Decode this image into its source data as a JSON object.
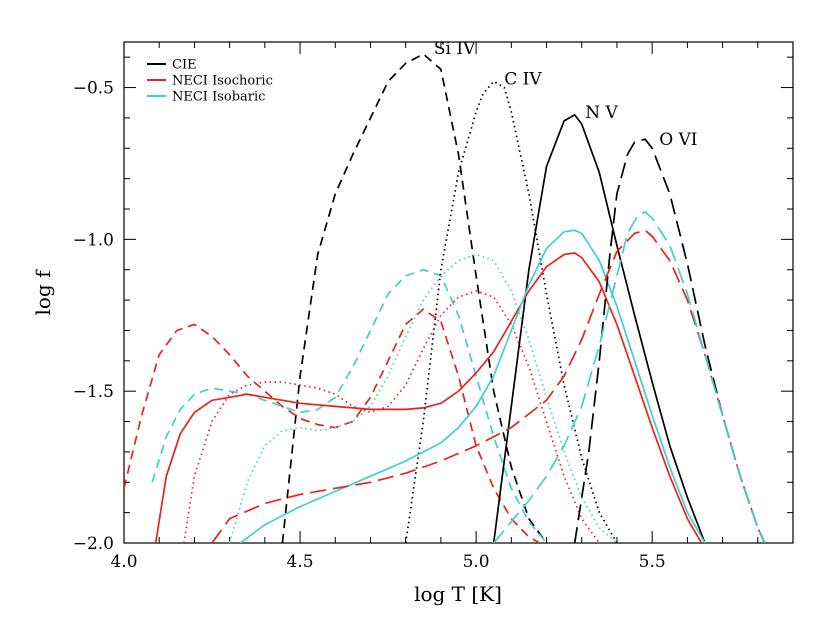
{
  "chart_data": {
    "type": "line",
    "xlabel": "log T [K]",
    "ylabel": "log f",
    "xlim": [
      4.0,
      5.9
    ],
    "ylim": [
      -2.0,
      -0.35
    ],
    "x_ticks": [
      4.0,
      4.5,
      5.0,
      5.5
    ],
    "x_tick_labels": [
      "4.0",
      "4.5",
      "5.0",
      "5.5"
    ],
    "y_ticks": [
      -2.0,
      -1.5,
      -1.0,
      -0.5
    ],
    "y_tick_labels": [
      "−2.0",
      "−1.5",
      "−1.0",
      "−0.5"
    ],
    "grid": false,
    "legend_position": "top-left",
    "legend": [
      {
        "label": "CIE",
        "color": "#000000"
      },
      {
        "label": "NECI Isochoric",
        "color": "#e8231f"
      },
      {
        "label": "NECI Isobaric",
        "color": "#3fd1c8"
      }
    ],
    "annotations": [
      {
        "text": "Si IV",
        "x": 4.88,
        "y": -0.37
      },
      {
        "text": "C IV",
        "x": 5.08,
        "y": -0.47
      },
      {
        "text": "N V",
        "x": 5.31,
        "y": -0.58
      },
      {
        "text": "O VI",
        "x": 5.52,
        "y": -0.67
      }
    ],
    "series": [
      {
        "ion": "Si IV",
        "model": "CIE",
        "color": "#000000",
        "dash": "medium",
        "x": [
          4.45,
          4.5,
          4.55,
          4.6,
          4.65,
          4.7,
          4.75,
          4.8,
          4.85,
          4.9,
          4.95,
          5.0,
          5.05,
          5.1,
          5.15,
          5.2
        ],
        "y": [
          -2.0,
          -1.45,
          -1.05,
          -0.85,
          -0.72,
          -0.6,
          -0.48,
          -0.42,
          -0.39,
          -0.44,
          -0.72,
          -1.12,
          -1.5,
          -1.75,
          -1.92,
          -2.0
        ]
      },
      {
        "ion": "Si IV",
        "model": "NECI Isochoric",
        "color": "#e8231f",
        "dash": "medium",
        "x": [
          4.0,
          4.05,
          4.1,
          4.15,
          4.2,
          4.25,
          4.3,
          4.35,
          4.4,
          4.45,
          4.5,
          4.55,
          4.6,
          4.65,
          4.7,
          4.75,
          4.8,
          4.85,
          4.9,
          4.95,
          5.0,
          5.05,
          5.1,
          5.15,
          5.18
        ],
        "y": [
          -1.82,
          -1.58,
          -1.38,
          -1.3,
          -1.28,
          -1.32,
          -1.38,
          -1.45,
          -1.5,
          -1.55,
          -1.59,
          -1.61,
          -1.62,
          -1.6,
          -1.52,
          -1.4,
          -1.28,
          -1.23,
          -1.27,
          -1.45,
          -1.68,
          -1.82,
          -1.92,
          -1.98,
          -2.0
        ]
      },
      {
        "ion": "Si IV",
        "model": "NECI Isobaric",
        "color": "#3fd1c8",
        "dash": "medium",
        "x": [
          4.08,
          4.12,
          4.16,
          4.2,
          4.25,
          4.3,
          4.35,
          4.4,
          4.45,
          4.5,
          4.55,
          4.6,
          4.65,
          4.7,
          4.75,
          4.8,
          4.85,
          4.9,
          4.95,
          5.0,
          5.05,
          5.1,
          5.15,
          5.2
        ],
        "y": [
          -1.8,
          -1.65,
          -1.56,
          -1.51,
          -1.49,
          -1.5,
          -1.51,
          -1.53,
          -1.55,
          -1.57,
          -1.56,
          -1.52,
          -1.42,
          -1.3,
          -1.18,
          -1.12,
          -1.1,
          -1.12,
          -1.25,
          -1.45,
          -1.65,
          -1.82,
          -1.93,
          -2.0
        ]
      },
      {
        "ion": "C IV",
        "model": "CIE",
        "color": "#000000",
        "dash": "dot",
        "x": [
          4.8,
          4.85,
          4.9,
          4.95,
          5.0,
          5.02,
          5.05,
          5.08,
          5.1,
          5.15,
          5.2,
          5.25,
          5.3,
          5.35,
          5.4
        ],
        "y": [
          -2.0,
          -1.6,
          -1.1,
          -0.78,
          -0.58,
          -0.52,
          -0.48,
          -0.5,
          -0.58,
          -0.85,
          -1.18,
          -1.48,
          -1.72,
          -1.9,
          -2.0
        ]
      },
      {
        "ion": "C IV",
        "model": "NECI Isochoric",
        "color": "#e8231f",
        "dash": "dot",
        "x": [
          4.17,
          4.2,
          4.25,
          4.3,
          4.35,
          4.4,
          4.45,
          4.5,
          4.55,
          4.6,
          4.65,
          4.7,
          4.75,
          4.8,
          4.85,
          4.9,
          4.95,
          5.0,
          5.05,
          5.1,
          5.15,
          5.2,
          5.25,
          5.3,
          5.35
        ],
        "y": [
          -2.0,
          -1.78,
          -1.6,
          -1.51,
          -1.48,
          -1.47,
          -1.47,
          -1.48,
          -1.49,
          -1.51,
          -1.55,
          -1.57,
          -1.55,
          -1.48,
          -1.36,
          -1.25,
          -1.19,
          -1.17,
          -1.19,
          -1.28,
          -1.42,
          -1.6,
          -1.78,
          -1.92,
          -2.0
        ]
      },
      {
        "ion": "C IV",
        "model": "NECI Isobaric",
        "color": "#3fd1c8",
        "dash": "dot",
        "x": [
          4.3,
          4.35,
          4.4,
          4.45,
          4.5,
          4.55,
          4.6,
          4.65,
          4.7,
          4.75,
          4.8,
          4.85,
          4.9,
          4.95,
          5.0,
          5.05,
          5.1,
          5.15,
          5.2,
          5.25,
          5.3,
          5.35,
          5.4
        ],
        "y": [
          -2.0,
          -1.8,
          -1.68,
          -1.63,
          -1.62,
          -1.63,
          -1.62,
          -1.6,
          -1.55,
          -1.45,
          -1.32,
          -1.2,
          -1.12,
          -1.07,
          -1.05,
          -1.07,
          -1.17,
          -1.33,
          -1.52,
          -1.7,
          -1.85,
          -1.95,
          -2.0
        ]
      },
      {
        "ion": "N V",
        "model": "CIE",
        "color": "#000000",
        "dash": "solid",
        "x": [
          5.05,
          5.1,
          5.15,
          5.2,
          5.25,
          5.28,
          5.3,
          5.35,
          5.4,
          5.45,
          5.5,
          5.55,
          5.6,
          5.65
        ],
        "y": [
          -2.0,
          -1.55,
          -1.1,
          -0.76,
          -0.61,
          -0.59,
          -0.62,
          -0.78,
          -1.02,
          -1.25,
          -1.47,
          -1.68,
          -1.85,
          -2.0
        ]
      },
      {
        "ion": "N V",
        "model": "NECI Isochoric",
        "color": "#e8231f",
        "dash": "solid",
        "x": [
          4.09,
          4.12,
          4.16,
          4.2,
          4.25,
          4.3,
          4.35,
          4.4,
          4.5,
          4.6,
          4.7,
          4.8,
          4.85,
          4.9,
          4.95,
          5.0,
          5.05,
          5.1,
          5.15,
          5.2,
          5.25,
          5.28,
          5.3,
          5.35,
          5.4,
          5.45,
          5.5,
          5.55,
          5.6,
          5.64
        ],
        "y": [
          -2.0,
          -1.78,
          -1.64,
          -1.57,
          -1.53,
          -1.52,
          -1.51,
          -1.52,
          -1.54,
          -1.55,
          -1.56,
          -1.56,
          -1.555,
          -1.54,
          -1.5,
          -1.44,
          -1.37,
          -1.27,
          -1.17,
          -1.09,
          -1.05,
          -1.045,
          -1.06,
          -1.14,
          -1.28,
          -1.45,
          -1.62,
          -1.78,
          -1.92,
          -2.0
        ]
      },
      {
        "ion": "N V",
        "model": "NECI Isobaric",
        "color": "#3fd1c8",
        "dash": "solid",
        "x": [
          4.33,
          4.4,
          4.5,
          4.6,
          4.7,
          4.8,
          4.9,
          4.95,
          5.0,
          5.05,
          5.1,
          5.15,
          5.2,
          5.25,
          5.28,
          5.3,
          5.35,
          5.4,
          5.45,
          5.5,
          5.55,
          5.6,
          5.65
        ],
        "y": [
          -2.0,
          -1.94,
          -1.88,
          -1.83,
          -1.78,
          -1.73,
          -1.67,
          -1.62,
          -1.55,
          -1.45,
          -1.3,
          -1.15,
          -1.03,
          -0.975,
          -0.97,
          -0.98,
          -1.07,
          -1.22,
          -1.4,
          -1.58,
          -1.75,
          -1.9,
          -2.0
        ]
      },
      {
        "ion": "O VI",
        "model": "CIE",
        "color": "#000000",
        "dash": "long",
        "x": [
          5.28,
          5.32,
          5.35,
          5.38,
          5.4,
          5.43,
          5.45,
          5.48,
          5.5,
          5.55,
          5.6,
          5.65,
          5.7,
          5.75,
          5.8,
          5.82
        ],
        "y": [
          -2.0,
          -1.7,
          -1.4,
          -1.05,
          -0.85,
          -0.72,
          -0.68,
          -0.67,
          -0.7,
          -0.85,
          -1.08,
          -1.35,
          -1.58,
          -1.78,
          -1.95,
          -2.0
        ]
      },
      {
        "ion": "O VI",
        "model": "NECI Isochoric",
        "color": "#e8231f",
        "dash": "long",
        "x": [
          4.25,
          4.3,
          4.4,
          4.5,
          4.6,
          4.7,
          4.8,
          4.9,
          5.0,
          5.1,
          5.2,
          5.25,
          5.3,
          5.35,
          5.4,
          5.45,
          5.48,
          5.5,
          5.55,
          5.6,
          5.65,
          5.7,
          5.75,
          5.8,
          5.82
        ],
        "y": [
          -2.0,
          -1.92,
          -1.87,
          -1.84,
          -1.82,
          -1.8,
          -1.77,
          -1.73,
          -1.68,
          -1.62,
          -1.53,
          -1.45,
          -1.33,
          -1.18,
          -1.04,
          -0.98,
          -0.97,
          -0.99,
          -1.07,
          -1.2,
          -1.38,
          -1.58,
          -1.78,
          -1.95,
          -2.0
        ]
      },
      {
        "ion": "O VI",
        "model": "NECI Isobaric",
        "color": "#3fd1c8",
        "dash": "long",
        "x": [
          5.05,
          5.1,
          5.15,
          5.2,
          5.25,
          5.3,
          5.35,
          5.4,
          5.43,
          5.46,
          5.48,
          5.5,
          5.55,
          5.6,
          5.65,
          5.7,
          5.75,
          5.8,
          5.82
        ],
        "y": [
          -2.0,
          -1.93,
          -1.86,
          -1.78,
          -1.68,
          -1.55,
          -1.35,
          -1.12,
          -0.98,
          -0.92,
          -0.91,
          -0.93,
          -1.02,
          -1.18,
          -1.38,
          -1.58,
          -1.78,
          -1.95,
          -2.0
        ]
      }
    ]
  }
}
